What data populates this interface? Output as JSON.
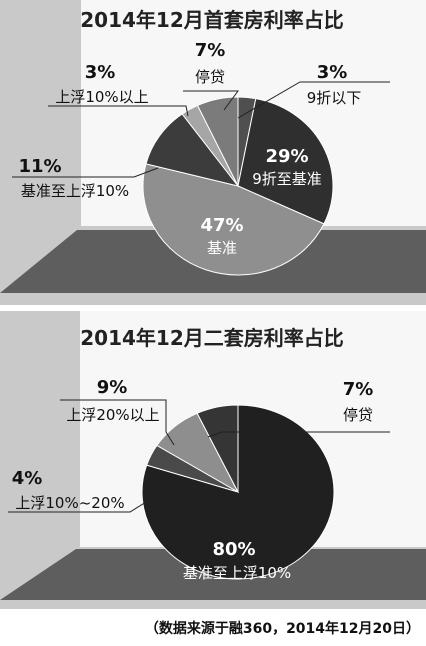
{
  "colors": {
    "frame_bg": "#c9c9c9",
    "backwall": "#f7f7f7",
    "floor": "#5e5e5e",
    "slice_stroke": "#ffffff"
  },
  "chart_data": [
    {
      "type": "pie",
      "title": "2014年12月首套房利率占比",
      "categories": [
        "9折以下",
        "9折至基准",
        "基准",
        "基准至上浮10%",
        "上浮10%以上",
        "停贷"
      ],
      "values": [
        3,
        29,
        47,
        11,
        3,
        7
      ],
      "value_labels": [
        "3%",
        "29%",
        "47%",
        "11%",
        "3%",
        "7%"
      ],
      "slice_colors": [
        "#4f4f4f",
        "#2f2f2f",
        "#8f8f8f",
        "#3c3c3c",
        "#a6a6a6",
        "#7b7b7b"
      ]
    },
    {
      "type": "pie",
      "title": "2014年12月二套房利率占比",
      "categories": [
        "基准至上浮10%",
        "上浮10%~20%",
        "上浮20%以上",
        "停贷"
      ],
      "values": [
        80,
        4,
        9,
        7
      ],
      "value_labels": [
        "80%",
        "4%",
        "9%",
        "7%"
      ],
      "slice_colors": [
        "#202020",
        "#4a4a4a",
        "#8e8e8e",
        "#353535"
      ]
    }
  ],
  "footer": {
    "source": "（数据来源于融360，2014年12月20日）"
  }
}
